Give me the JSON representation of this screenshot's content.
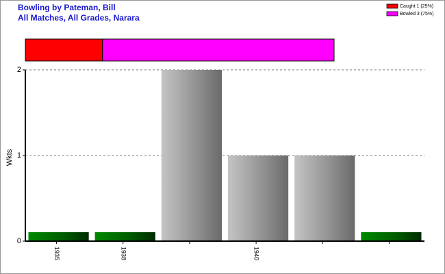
{
  "chart_data": [
    {
      "type": "stacked-hbar",
      "title": "Bowling by Pateman, Bill",
      "subtitle": "All Matches, All Grades, Narara",
      "xlim": [
        0,
        100
      ],
      "series": [
        {
          "name": "Caught 1 (25%)",
          "color": "#ff0000",
          "values": [
            25
          ]
        },
        {
          "name": "Bowled 3 (75%)",
          "color": "#ff00ff",
          "values": [
            75
          ]
        }
      ]
    },
    {
      "type": "bar",
      "y_label": "Wkts",
      "categories": [
        "1935",
        "1938",
        null,
        "1940",
        null,
        null
      ],
      "values": [
        0,
        0,
        2,
        1,
        1,
        0
      ],
      "color": "#999999",
      "zero_color": "#008000",
      "ylim": [
        0,
        2
      ],
      "yticks": [
        0,
        1,
        2
      ],
      "grid": true
    }
  ]
}
